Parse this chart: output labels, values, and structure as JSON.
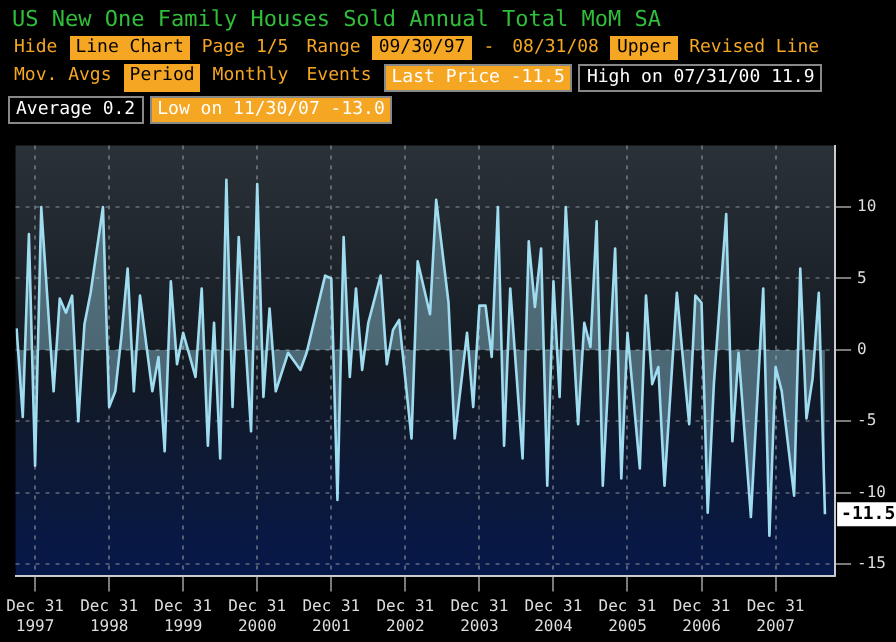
{
  "chart_data": {
    "type": "area",
    "title": "US New One Family Houses Sold Annual Total MoM SA",
    "annotations": [
      "Hide",
      "Line Chart",
      "Page 1/5",
      "Range",
      "09/30/97",
      "-",
      "08/31/08",
      "Upper",
      "Revised Line",
      "Mov. Avgs",
      "Period",
      "Monthly",
      "Events",
      "Last Price -11.5",
      "High on 07/31/00 11.9",
      "Average 0.2",
      "Low on 11/30/07 -13.0",
      {
        "text": "-11.5",
        "x": "2008-08-31",
        "y": -11.5
      }
    ],
    "x": [
      "1997-09-30",
      "1997-10-31",
      "1997-11-30",
      "1997-12-31",
      "1998-01-31",
      "1998-03-31",
      "1998-04-30",
      "1998-05-31",
      "1998-06-30",
      "1998-07-31",
      "1998-08-31",
      "1998-09-30",
      "1998-11-30",
      "1998-12-31",
      "1999-01-31",
      "1999-02-28",
      "1999-03-31",
      "1999-04-30",
      "1999-05-31",
      "1999-07-31",
      "1999-08-31",
      "1999-09-30",
      "1999-10-31",
      "1999-11-30",
      "1999-12-31",
      "2000-02-29",
      "2000-03-31",
      "2000-04-30",
      "2000-05-31",
      "2000-06-30",
      "2000-07-31",
      "2000-08-31",
      "2000-09-30",
      "2000-11-30",
      "2000-12-31",
      "2001-01-31",
      "2001-02-28",
      "2001-03-31",
      "2001-05-31",
      "2001-07-31",
      "2001-08-31",
      "2001-11-30",
      "2001-12-31",
      "2002-01-31",
      "2002-02-28",
      "2002-03-31",
      "2002-04-30",
      "2002-05-31",
      "2002-06-30",
      "2002-08-31",
      "2002-09-30",
      "2002-10-31",
      "2002-11-30",
      "2003-01-31",
      "2003-02-28",
      "2003-04-30",
      "2003-05-31",
      "2003-07-31",
      "2003-08-31",
      "2003-10-31",
      "2003-11-30",
      "2003-12-31",
      "2004-01-31",
      "2004-02-29",
      "2004-03-31",
      "2004-04-30",
      "2004-05-31",
      "2004-07-31",
      "2004-08-31",
      "2004-09-30",
      "2004-10-31",
      "2004-11-30",
      "2004-12-31",
      "2005-01-31",
      "2005-02-28",
      "2005-04-30",
      "2005-05-31",
      "2005-06-30",
      "2005-07-31",
      "2005-08-31",
      "2005-10-31",
      "2005-11-30",
      "2005-12-31",
      "2006-02-28",
      "2006-03-31",
      "2006-04-30",
      "2006-05-31",
      "2006-06-30",
      "2006-08-31",
      "2006-09-30",
      "2006-10-31",
      "2006-11-30",
      "2006-12-31",
      "2007-01-31",
      "2007-02-28",
      "2007-04-30",
      "2007-05-31",
      "2007-06-30",
      "2007-08-31",
      "2007-10-31",
      "2007-11-30",
      "2007-12-31",
      "2008-01-31",
      "2008-03-31",
      "2008-04-30",
      "2008-05-31",
      "2008-06-30",
      "2008-07-31",
      "2008-08-31"
    ],
    "series": [
      {
        "color": "#9fdcf0",
        "values": [
          1.5,
          -4.7,
          8.1,
          -8.1,
          10,
          -2.9,
          3.6,
          2.6,
          3.8,
          -5,
          1.8,
          4,
          10,
          -4,
          -2.9,
          1,
          5.7,
          -2.9,
          3.8,
          -2.9,
          -0.5,
          -7.1,
          4.8,
          -1,
          1.2,
          -1.9,
          4.3,
          -6.7,
          1.9,
          -7.6,
          11.9,
          -4,
          7.9,
          -5.7,
          11.6,
          -3.3,
          2.9,
          -2.9,
          -0.2,
          -1.4,
          -0.2,
          5.2,
          5,
          -10.5,
          7.9,
          -1.9,
          4.3,
          -1.4,
          1.9,
          5.2,
          -1,
          1.4,
          2.1,
          -6.2,
          6.2,
          2.5,
          10.5,
          3.3,
          -6.2,
          1.2,
          -4,
          3.1,
          3.1,
          -0.5,
          10,
          -6.7,
          4.3,
          -7.6,
          7.6,
          3,
          7.1,
          -9.5,
          4.8,
          -3.3,
          10,
          -5.2,
          1.9,
          0.2,
          9,
          -9.5,
          7.1,
          -9,
          1.2,
          -8.3,
          3.8,
          -2.4,
          -1.2,
          -9.5,
          4,
          -0.7,
          -5.2,
          3.8,
          3.3,
          -11.4,
          -2.4,
          9.5,
          -6.4,
          -0.2,
          -11.7,
          4.3,
          -13,
          -1.2,
          -2.9,
          -10.2,
          5.7,
          -4.8,
          -2,
          4,
          -11.5
        ]
      }
    ],
    "xlim": [
      "1997-09-25",
      "2008-10-20"
    ],
    "xticks": [
      {
        "value": "1997-12-31",
        "label": "Dec 31 1997"
      },
      {
        "value": "1998-12-31",
        "label": "Dec 31 1998"
      },
      {
        "value": "1999-12-31",
        "label": "Dec 31 1999"
      },
      {
        "value": "2000-12-31",
        "label": "Dec 31 2000"
      },
      {
        "value": "2001-12-31",
        "label": "Dec 31 2001"
      },
      {
        "value": "2002-12-31",
        "label": "Dec 31 2002"
      },
      {
        "value": "2003-12-31",
        "label": "Dec 31 2003"
      },
      {
        "value": "2004-12-31",
        "label": "Dec 31 2004"
      },
      {
        "value": "2005-12-31",
        "label": "Dec 31 2005"
      },
      {
        "value": "2006-12-31",
        "label": "Dec 31 2006"
      },
      {
        "value": "2007-12-31",
        "label": "Dec 31 2007"
      }
    ],
    "ylim": [
      -15.8,
      14.3
    ],
    "yticks": [
      -15,
      -10,
      -5,
      0,
      5,
      10
    ],
    "grid": true
  }
}
